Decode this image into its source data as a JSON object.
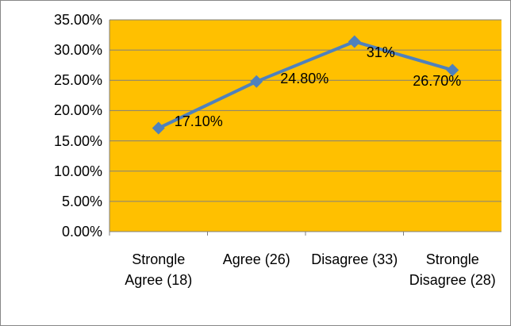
{
  "chart_data": {
    "type": "line",
    "categories": [
      "Strongle Agree (18)",
      "Agree (26)",
      "Disagree (33)",
      "Strongle Disagree (28)"
    ],
    "series": [
      {
        "color": "#4f81bd",
        "values": [
          17.1,
          24.8,
          31.4,
          26.7
        ],
        "value_labels": [
          "17.10%",
          "24.80%",
          "31%",
          "26.70%"
        ]
      }
    ],
    "ylim": [
      0,
      35
    ],
    "yticks": [
      {
        "value": 0,
        "label": "0.00%"
      },
      {
        "value": 5,
        "label": "5.00%"
      },
      {
        "value": 10,
        "label": "10.00%"
      },
      {
        "value": 15,
        "label": "15.00%"
      },
      {
        "value": 20,
        "label": "20.00%"
      },
      {
        "value": 25,
        "label": "25.00%"
      },
      {
        "value": 30,
        "label": "30.00%"
      },
      {
        "value": 35,
        "label": "35.00%"
      }
    ],
    "grid": true,
    "plot_background": "#ffc000"
  }
}
